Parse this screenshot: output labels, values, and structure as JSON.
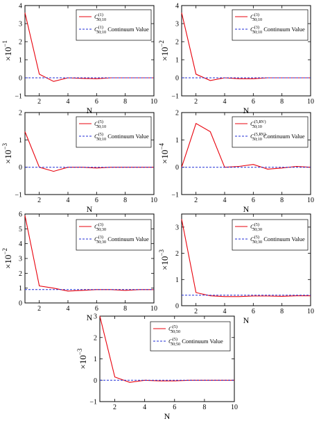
{
  "chart_data": [
    {
      "type": "line",
      "x": [
        1,
        2,
        3,
        4,
        5,
        6,
        7,
        8,
        9,
        10
      ],
      "xlim": [
        1,
        10
      ],
      "ylim": [
        -1,
        4
      ],
      "xticks": [
        2,
        4,
        6,
        8,
        10
      ],
      "yticks": [
        -1,
        0,
        1,
        2,
        3,
        4
      ],
      "xlabel": "N",
      "ylabel": {
        "base": "×10",
        "exp": "−1"
      },
      "series": [
        {
          "name": {
            "main": "C",
            "sup": "(1)",
            "sub": "30;10"
          },
          "color": "#e8000b",
          "style": "solid",
          "values": [
            3.6,
            0.2,
            -0.2,
            0.0,
            -0.03,
            -0.05,
            0.0,
            0.0,
            0.0,
            0.0
          ]
        },
        {
          "name": {
            "main": "C",
            "sup": "(1)",
            "sub": "30;10",
            "suffix": " Continuum Value"
          },
          "color": "#1f2bd6",
          "style": "dashed",
          "values": [
            0,
            0,
            0,
            0,
            0,
            0,
            0,
            0,
            0,
            0
          ]
        }
      ],
      "grid": false,
      "legend": "top-right"
    },
    {
      "type": "line",
      "x": [
        1,
        2,
        3,
        4,
        5,
        6,
        7,
        8,
        9,
        10
      ],
      "xlim": [
        1,
        10
      ],
      "ylim": [
        -1,
        4
      ],
      "xticks": [
        2,
        4,
        6,
        8,
        10
      ],
      "yticks": [
        -1,
        0,
        1,
        2,
        3,
        4
      ],
      "xlabel": "N",
      "ylabel": {
        "base": "×10",
        "exp": "−2"
      },
      "series": [
        {
          "name": {
            "main": "C",
            "sup": "(3)",
            "sub": "30;10"
          },
          "color": "#e8000b",
          "style": "solid",
          "values": [
            3.6,
            0.2,
            -0.15,
            0.0,
            -0.05,
            -0.05,
            0.0,
            0.0,
            0.0,
            0.0
          ]
        },
        {
          "name": {
            "main": "C",
            "sup": "(3)",
            "sub": "30;10",
            "suffix": " Continuum Value"
          },
          "color": "#1f2bd6",
          "style": "dashed",
          "values": [
            0,
            0,
            0,
            0,
            0,
            0,
            0,
            0,
            0,
            0
          ]
        }
      ],
      "grid": false,
      "legend": "top-right"
    },
    {
      "type": "line",
      "x": [
        1,
        2,
        3,
        4,
        5,
        6,
        7,
        8,
        9,
        10
      ],
      "xlim": [
        1,
        10
      ],
      "ylim": [
        -1,
        2
      ],
      "xticks": [
        2,
        4,
        6,
        8,
        10
      ],
      "yticks": [
        -1,
        0,
        1,
        2
      ],
      "xlabel": "N",
      "ylabel": {
        "base": "×10",
        "exp": "−3"
      },
      "series": [
        {
          "name": {
            "main": "C",
            "sup": "(5)",
            "sub": "30;10"
          },
          "color": "#e8000b",
          "style": "solid",
          "values": [
            1.3,
            0.0,
            -0.15,
            0.0,
            0.0,
            -0.03,
            0.0,
            0.0,
            0.0,
            0.0
          ]
        },
        {
          "name": {
            "main": "C",
            "sup": "(5)",
            "sub": "30;10",
            "suffix": " Continuum Value"
          },
          "color": "#1f2bd6",
          "style": "dashed",
          "values": [
            0,
            0,
            0,
            0,
            0,
            0,
            0,
            0,
            0,
            0
          ]
        }
      ],
      "grid": false,
      "legend": "top-right"
    },
    {
      "type": "line",
      "x": [
        1,
        2,
        3,
        4,
        5,
        6,
        7,
        8,
        9,
        10
      ],
      "xlim": [
        1,
        10
      ],
      "ylim": [
        -1,
        2
      ],
      "xticks": [
        2,
        4,
        6,
        8,
        10
      ],
      "yticks": [
        -1,
        0,
        1,
        2
      ],
      "xlabel": "N",
      "ylabel": {
        "base": "×10",
        "exp": "−4"
      },
      "series": [
        {
          "name": {
            "main": "C",
            "sup": "(5,RV)",
            "sub": "30;10"
          },
          "color": "#e8000b",
          "style": "solid",
          "values": [
            0.0,
            1.6,
            1.3,
            0.0,
            0.03,
            0.1,
            -0.07,
            -0.03,
            0.03,
            0.0
          ]
        },
        {
          "name": {
            "main": "C",
            "sup": "(5,RV)",
            "sub": "30;10",
            "suffix": " Continuum Value"
          },
          "color": "#1f2bd6",
          "style": "dashed",
          "values": [
            0,
            0,
            0,
            0,
            0,
            0,
            0,
            0,
            0,
            0
          ]
        }
      ],
      "grid": false,
      "legend": "top-right"
    },
    {
      "type": "line",
      "x": [
        1,
        2,
        3,
        4,
        5,
        6,
        7,
        8,
        9,
        10
      ],
      "xlim": [
        1,
        10
      ],
      "ylim": [
        0,
        6
      ],
      "xticks": [
        2,
        4,
        6,
        8,
        10
      ],
      "yticks": [
        0,
        1,
        2,
        3,
        4,
        5,
        6
      ],
      "xlabel": "N",
      "ylabel": {
        "base": "×10",
        "exp": "−2"
      },
      "series": [
        {
          "name": {
            "main": "C",
            "sup": "(3)",
            "sub": "30;30"
          },
          "color": "#e8000b",
          "style": "solid",
          "values": [
            5.9,
            1.15,
            1.0,
            0.8,
            0.85,
            0.9,
            0.9,
            0.85,
            0.9,
            0.9
          ]
        },
        {
          "name": {
            "main": "C",
            "sup": "(3)",
            "sub": "30;30",
            "suffix": " Continuum Value"
          },
          "color": "#1f2bd6",
          "style": "dashed",
          "values": [
            0.9,
            0.9,
            0.9,
            0.9,
            0.9,
            0.9,
            0.9,
            0.9,
            0.9,
            0.9
          ]
        }
      ],
      "grid": false,
      "legend": "top-right"
    },
    {
      "type": "line",
      "x": [
        1,
        2,
        3,
        4,
        5,
        6,
        7,
        8,
        9,
        10
      ],
      "xlim": [
        1,
        10
      ],
      "ylim": [
        0,
        3.5
      ],
      "xticks": [
        2,
        4,
        6,
        8,
        10
      ],
      "yticks": [
        0,
        1,
        2,
        3
      ],
      "xlabel": "N",
      "ylabel": {
        "base": "×10",
        "exp": "−3"
      },
      "series": [
        {
          "name": {
            "main": "C",
            "sup": "(5)",
            "sub": "30;30"
          },
          "color": "#e8000b",
          "style": "solid",
          "values": [
            3.3,
            0.5,
            0.38,
            0.35,
            0.35,
            0.37,
            0.37,
            0.36,
            0.38,
            0.38
          ]
        },
        {
          "name": {
            "main": "C",
            "sup": "(5)",
            "sub": "30;30",
            "suffix": " Continuum Value"
          },
          "color": "#1f2bd6",
          "style": "dashed",
          "values": [
            0.4,
            0.4,
            0.4,
            0.4,
            0.4,
            0.4,
            0.4,
            0.4,
            0.4,
            0.4
          ]
        }
      ],
      "grid": false,
      "legend": "top-right"
    },
    {
      "type": "line",
      "x": [
        1,
        2,
        3,
        4,
        5,
        6,
        7,
        8,
        9,
        10
      ],
      "xlim": [
        1,
        10
      ],
      "ylim": [
        -1,
        3
      ],
      "xticks": [
        2,
        4,
        6,
        8,
        10
      ],
      "yticks": [
        -1,
        0,
        1,
        2,
        3
      ],
      "xlabel": "N",
      "ylabel": {
        "base": "×10",
        "exp": "−3"
      },
      "series": [
        {
          "name": {
            "main": "C",
            "sup": "(5)",
            "sub": "30;50"
          },
          "color": "#e8000b",
          "style": "solid",
          "values": [
            3.0,
            0.15,
            -0.1,
            0.0,
            -0.03,
            -0.03,
            0.0,
            0.0,
            0.0,
            0.0
          ]
        },
        {
          "name": {
            "main": "C",
            "sup": "(5)",
            "sub": "30;50",
            "suffix": " Continuum Value"
          },
          "color": "#1f2bd6",
          "style": "dashed",
          "values": [
            0,
            0,
            0,
            0,
            0,
            0,
            0,
            0,
            0,
            0
          ]
        }
      ],
      "grid": false,
      "legend": "top-right"
    }
  ]
}
